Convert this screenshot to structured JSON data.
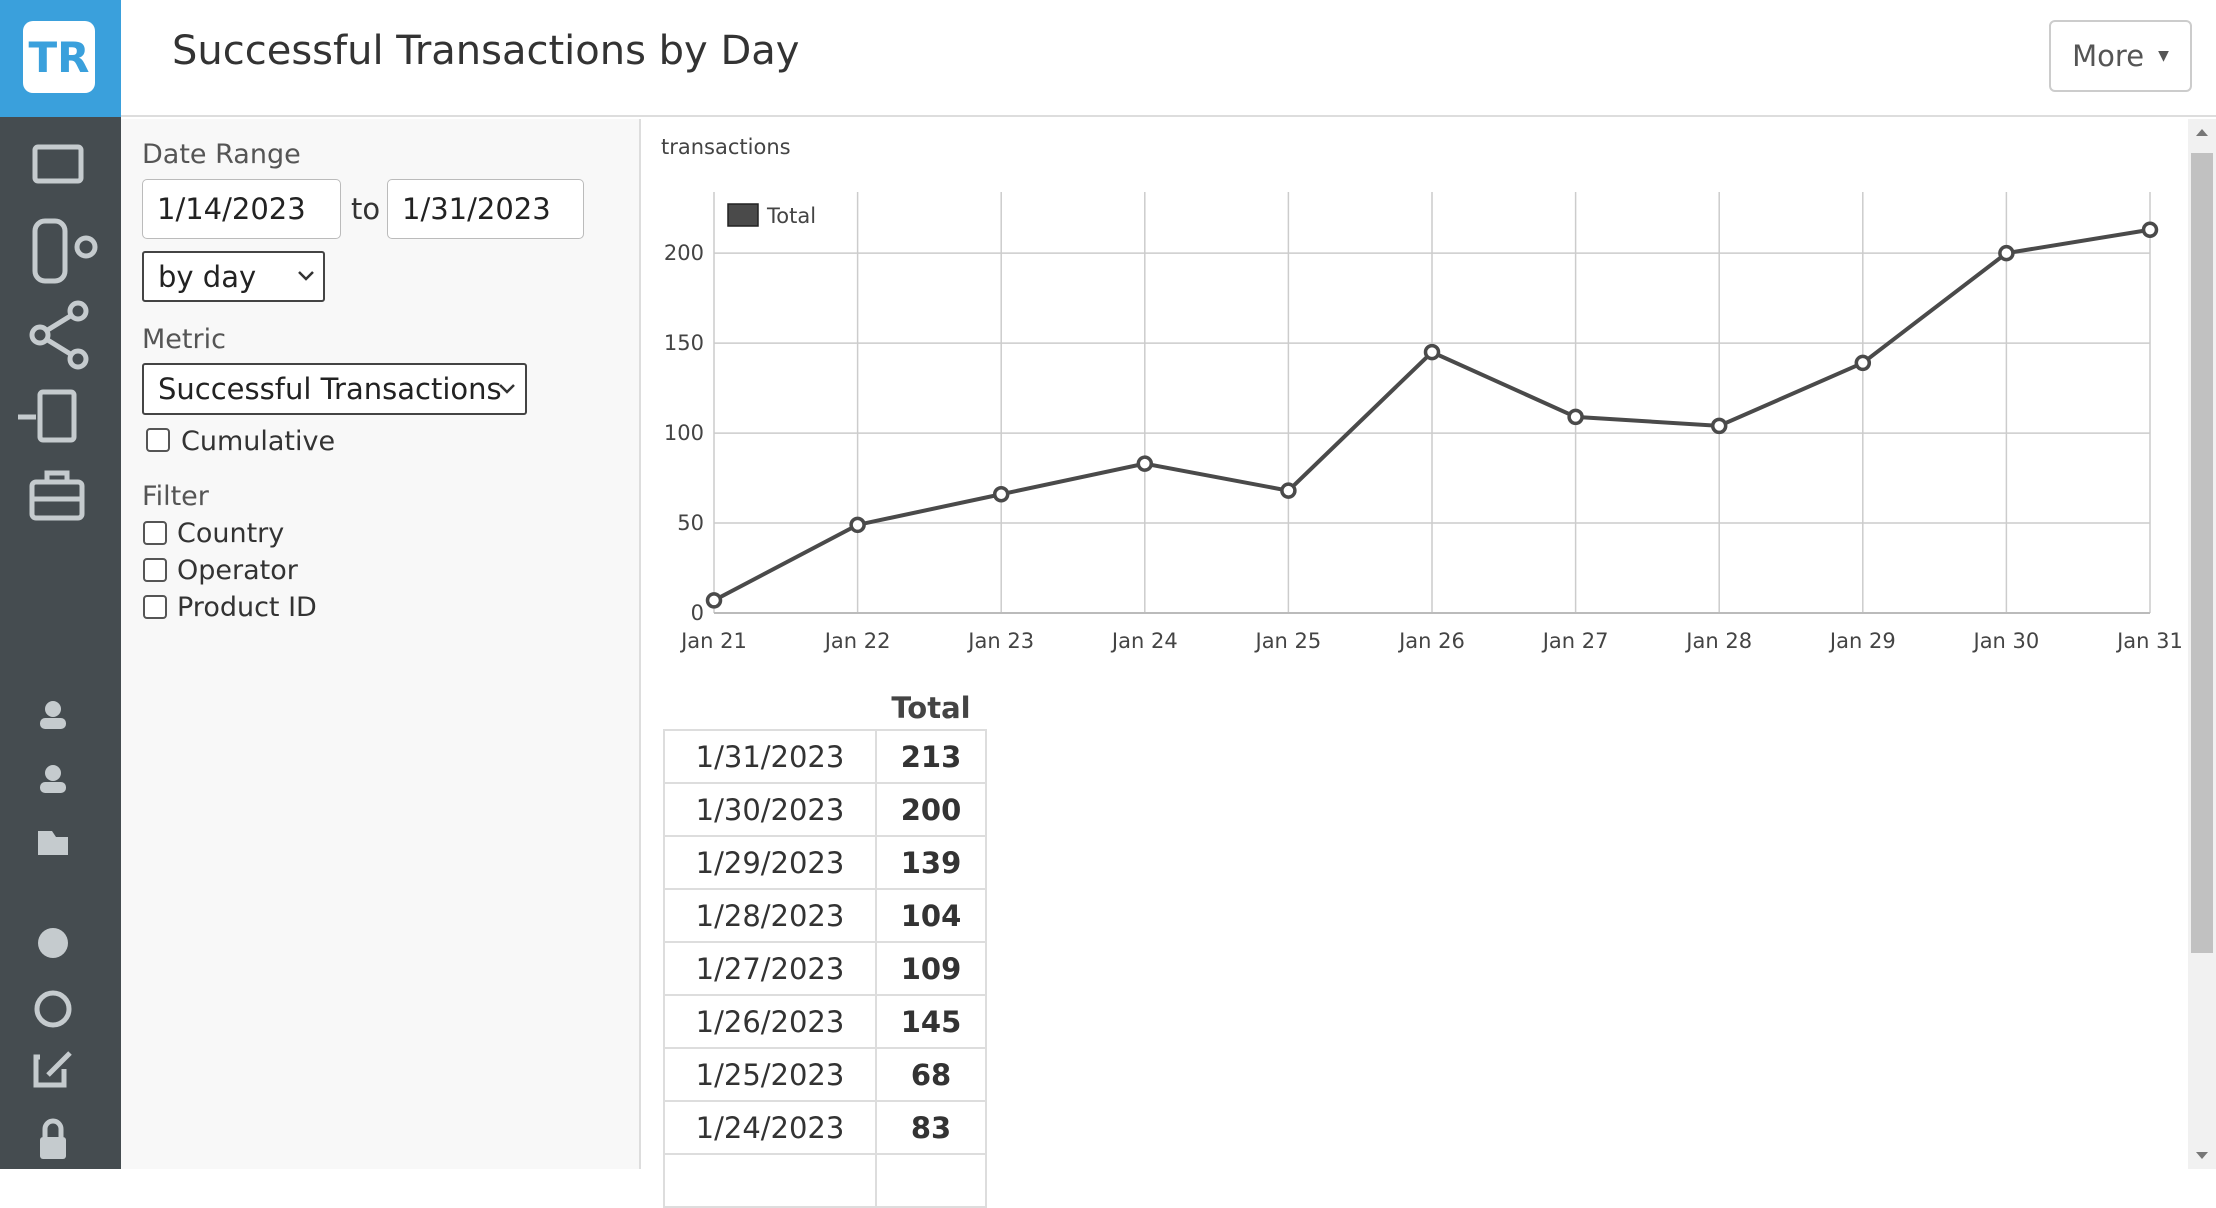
{
  "logo": "TR",
  "header": {
    "title": "Successful Transactions by Day",
    "more_button": "More"
  },
  "controls": {
    "date_range_label": "Date Range",
    "date_from": "1/14/2023",
    "to_label": "to",
    "date_to": "1/31/2023",
    "interval": "by day",
    "metric_label": "Metric",
    "metric": "Successful Transactions",
    "cumulative": "Cumulative",
    "filter_label": "Filter",
    "filters": [
      "Country",
      "Operator",
      "Product ID"
    ]
  },
  "chart_data": {
    "type": "line",
    "y_label": "transactions",
    "categories": [
      "Jan 21",
      "Jan 22",
      "Jan 23",
      "Jan 24",
      "Jan 25",
      "Jan 26",
      "Jan 27",
      "Jan 28",
      "Jan 29",
      "Jan 30",
      "Jan 31"
    ],
    "series": [
      {
        "name": "Total",
        "color": "#4a4a4a",
        "values": [
          7,
          49,
          66,
          83,
          68,
          145,
          109,
          104,
          139,
          200,
          213
        ]
      }
    ],
    "ylim": [
      0,
      234
    ],
    "yticks": [
      0,
      50,
      100,
      150,
      200
    ],
    "grid": true,
    "legend": "top-left"
  },
  "table": {
    "header": "Total",
    "rows": [
      [
        "1/31/2023",
        "213"
      ],
      [
        "1/30/2023",
        "200"
      ],
      [
        "1/29/2023",
        "139"
      ],
      [
        "1/28/2023",
        "104"
      ],
      [
        "1/27/2023",
        "109"
      ],
      [
        "1/26/2023",
        "145"
      ],
      [
        "1/25/2023",
        "68"
      ],
      [
        "1/24/2023",
        "83"
      ]
    ]
  }
}
